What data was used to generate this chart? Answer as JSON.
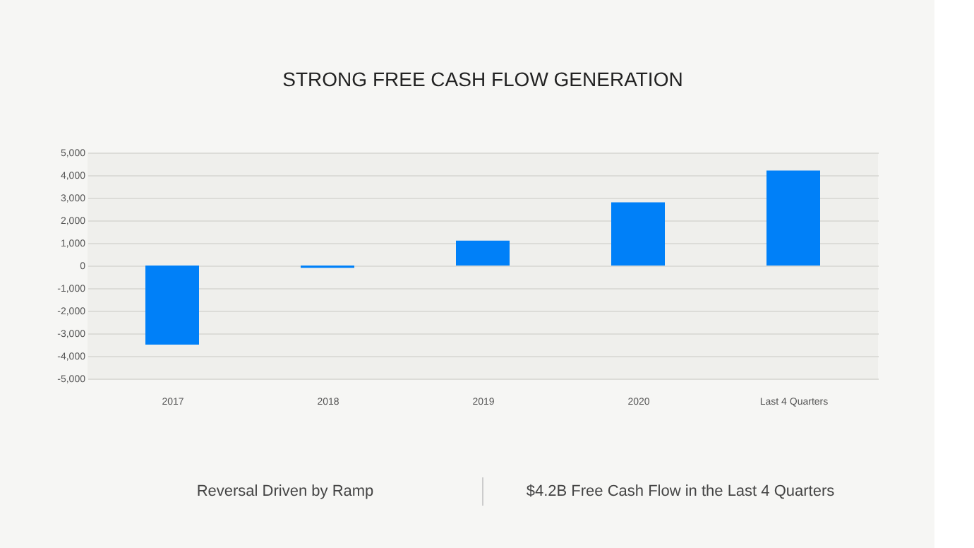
{
  "chart_data": {
    "type": "bar",
    "title": "STRONG FREE CASH FLOW GENERATION",
    "categories": [
      "2017",
      "2018",
      "2019",
      "2020",
      "Last 4 Quarters"
    ],
    "values": [
      -3500,
      -100,
      1100,
      2800,
      4200
    ],
    "color": "#0080f8",
    "ylim": [
      -5000,
      5000
    ],
    "yticks": [
      {
        "value": -5000,
        "label": "-5,000"
      },
      {
        "value": -4000,
        "label": "-4,000"
      },
      {
        "value": -3000,
        "label": "-3,000"
      },
      {
        "value": -2000,
        "label": "-2,000"
      },
      {
        "value": -1000,
        "label": "-1,000"
      },
      0,
      {
        "value": 1000,
        "label": "1,000"
      },
      {
        "value": 2000,
        "label": "2,000"
      },
      {
        "value": 3000,
        "label": "3,000"
      },
      {
        "value": 4000,
        "label": "4,000"
      },
      {
        "value": 5000,
        "label": "5,000"
      }
    ],
    "grid": "y",
    "annotations": [
      "Reversal Driven by Ramp",
      "$4.2B Free Cash Flow in the Last 4 Quarters"
    ]
  }
}
